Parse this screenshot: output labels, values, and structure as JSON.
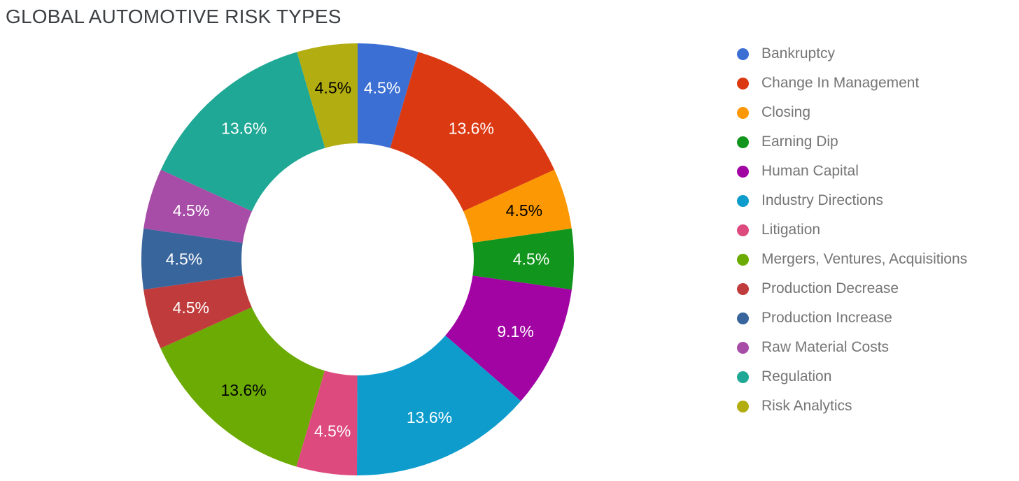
{
  "title": "GLOBAL AUTOMOTIVE RISK TYPES",
  "chart_data": {
    "type": "pie",
    "subtype": "donut",
    "title": "GLOBAL AUTOMOTIVE RISK TYPES",
    "unit": "%",
    "start_angle_deg": 0,
    "direction": "clockwise",
    "inner_radius_ratio": 0.537,
    "legend_position": "right",
    "background_color": "#ffffff",
    "hole_color": "#ffffff",
    "slices": [
      {
        "label": "Bankruptcy",
        "value": 4.5,
        "pct_label": "4.5%",
        "color": "#3b6fd4",
        "label_color": "#ffffff"
      },
      {
        "label": "Change In Management",
        "value": 13.6,
        "pct_label": "13.6%",
        "color": "#db3912",
        "label_color": "#ffffff"
      },
      {
        "label": "Closing",
        "value": 4.5,
        "pct_label": "4.5%",
        "color": "#fc9803",
        "label_color": "#000000"
      },
      {
        "label": "Earning Dip",
        "value": 4.5,
        "pct_label": "4.5%",
        "color": "#12951d",
        "label_color": "#ffffff"
      },
      {
        "label": "Human Capital",
        "value": 9.1,
        "pct_label": "9.1%",
        "color": "#a203a3",
        "label_color": "#ffffff"
      },
      {
        "label": "Industry Directions",
        "value": 13.6,
        "pct_label": "13.6%",
        "color": "#0d9ccc",
        "label_color": "#ffffff"
      },
      {
        "label": "Litigation",
        "value": 4.5,
        "pct_label": "4.5%",
        "color": "#dd4a7d",
        "label_color": "#ffffff"
      },
      {
        "label": "Mergers, Ventures, Acquisitions",
        "value": 13.6,
        "pct_label": "13.6%",
        "color": "#6bab04",
        "label_color": "#000000"
      },
      {
        "label": "Production Decrease",
        "value": 4.5,
        "pct_label": "4.5%",
        "color": "#c03c3c",
        "label_color": "#ffffff"
      },
      {
        "label": "Production Increase",
        "value": 4.5,
        "pct_label": "4.5%",
        "color": "#38659b",
        "label_color": "#ffffff"
      },
      {
        "label": "Raw Material Costs",
        "value": 4.5,
        "pct_label": "4.5%",
        "color": "#a74da7",
        "label_color": "#ffffff"
      },
      {
        "label": "Regulation",
        "value": 13.6,
        "pct_label": "13.6%",
        "color": "#1fa895",
        "label_color": "#ffffff"
      },
      {
        "label": "Risk Analytics",
        "value": 4.5,
        "pct_label": "4.5%",
        "color": "#b2ad11",
        "label_color": "#000000"
      }
    ],
    "legend_text_color": "#757575"
  }
}
